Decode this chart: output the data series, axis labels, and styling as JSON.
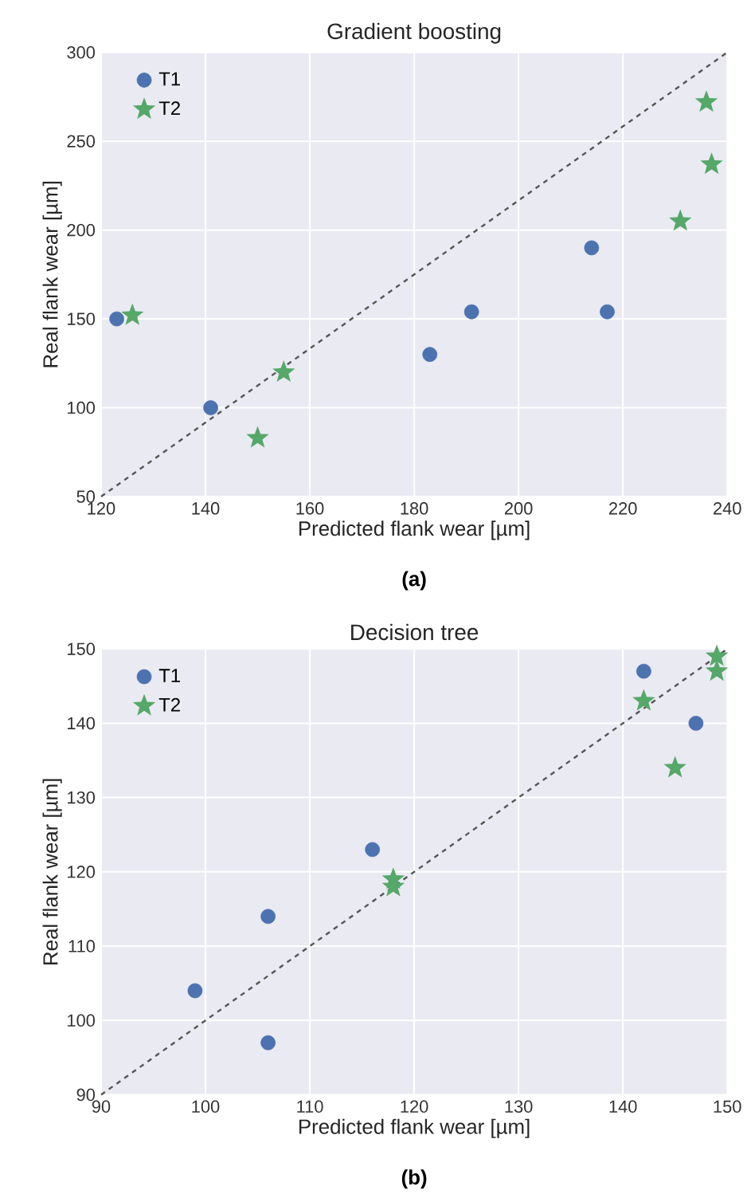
{
  "chart_data": [
    {
      "type": "scatter",
      "title": "Gradient boosting",
      "xlabel": "Predicted flank wear [µm]",
      "ylabel": "Real flank wear [µm]",
      "annotations": [
        "**(a)**"
      ],
      "xlim": [
        120,
        240
      ],
      "ylim": [
        50,
        300
      ],
      "xticks": [
        120,
        140,
        160,
        180,
        200,
        220,
        240
      ],
      "yticks": [
        50,
        100,
        150,
        200,
        250,
        300
      ],
      "grid": true,
      "legend": "top left",
      "series": [
        {
          "name": "T1",
          "color": "#4c72b0",
          "marker": "circle",
          "x": [
            123,
            141,
            183,
            191,
            214,
            217
          ],
          "values": [
            150,
            100,
            130,
            154,
            190,
            154
          ]
        },
        {
          "name": "T2",
          "color": "#55a868",
          "marker": "star",
          "x": [
            126,
            150,
            155,
            231,
            236,
            237
          ],
          "values": [
            152,
            83,
            120,
            205,
            272,
            237
          ]
        },
        {
          "type": "line",
          "color": "#555555",
          "line_style": "dashed",
          "marker": "none",
          "x": [
            120,
            240
          ],
          "values": [
            50,
            300
          ]
        }
      ]
    },
    {
      "type": "scatter",
      "title": "Decision tree",
      "xlabel": "Predicted flank wear [µm]",
      "ylabel": "Real flank wear [µm]",
      "annotations": [
        "**(b)**"
      ],
      "xlim": [
        90,
        150
      ],
      "ylim": [
        90,
        150
      ],
      "xticks": [
        90,
        100,
        110,
        120,
        130,
        140,
        150
      ],
      "yticks": [
        90,
        100,
        110,
        120,
        130,
        140,
        150
      ],
      "grid": true,
      "legend": "top left",
      "series": [
        {
          "name": "T1",
          "color": "#4c72b0",
          "marker": "circle",
          "x": [
            99,
            106,
            106,
            116,
            142,
            147
          ],
          "values": [
            104,
            114,
            97,
            123,
            147,
            140
          ]
        },
        {
          "name": "T2",
          "color": "#55a868",
          "marker": "star",
          "x": [
            118,
            118,
            142,
            145,
            149,
            149
          ],
          "values": [
            119,
            118,
            143,
            134,
            149,
            147
          ]
        },
        {
          "type": "line",
          "color": "#555555",
          "line_style": "dashed",
          "marker": "none",
          "x": [
            90,
            150
          ],
          "values": [
            90,
            150
          ]
        }
      ]
    }
  ]
}
